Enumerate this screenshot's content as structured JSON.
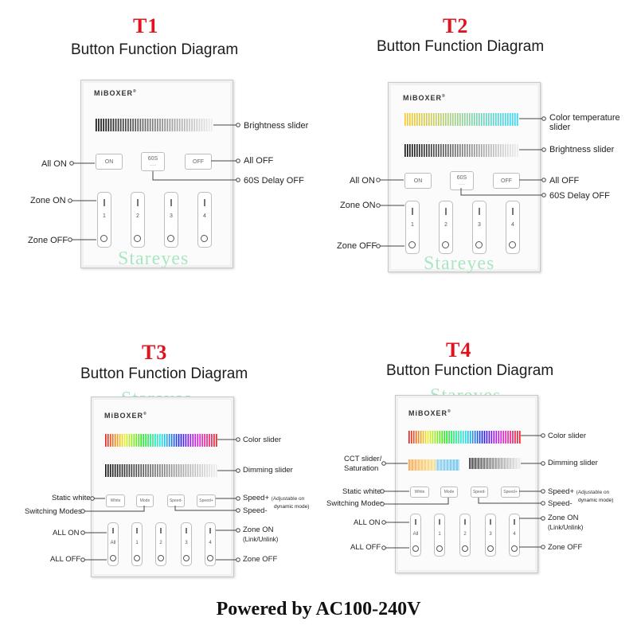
{
  "brand": "MiBOXER",
  "watermark": "Stareyes",
  "footer": "Powered by AC100-240V",
  "colors": {
    "tag": "#e0141e",
    "watermark": "#8fe0b0"
  },
  "t1": {
    "tag": "T1",
    "title": "Button Function Diagram",
    "buttons": [
      "ON",
      "60S",
      "OFF"
    ],
    "zones": [
      "1",
      "2",
      "3",
      "4"
    ],
    "labels": {
      "brightness": "Brightness slider",
      "all_on": "All ON",
      "all_off": "All OFF",
      "delay": "60S Delay OFF",
      "zone_on": "Zone ON",
      "zone_off": "Zone OFF"
    }
  },
  "t2": {
    "tag": "T2",
    "title": "Button Function Diagram",
    "buttons": [
      "ON",
      "60S",
      "OFF"
    ],
    "zones": [
      "1",
      "2",
      "3",
      "4"
    ],
    "labels": {
      "color_temp": "Color temperature",
      "color_temp_2": "slider",
      "brightness": "Brightness slider",
      "all_on": "All ON",
      "all_off": "All OFF",
      "delay": "60S Delay OFF",
      "zone_on": "Zone ON",
      "zone_off": "Zone OFF"
    }
  },
  "t3": {
    "tag": "T3",
    "title": "Button Function Diagram",
    "buttons": [
      "White",
      "Mode",
      "Speed-",
      "Speed+"
    ],
    "zones": [
      "All",
      "1",
      "2",
      "3",
      "4"
    ],
    "labels": {
      "color": "Color slider",
      "dimming": "Dimming slider",
      "static_white": "Static white",
      "switching": "Switching Modes",
      "speed_plus": "Speed+",
      "speed_note": "(Adjustable on",
      "speed_note_2": "dynamic mode)",
      "speed_minus": "Speed-",
      "all_on": "ALL ON",
      "all_off": "ALL OFF",
      "zone_on": "Zone ON",
      "zone_on_sub": "(Link/Unlink)",
      "zone_off": "Zone OFF"
    }
  },
  "t4": {
    "tag": "T4",
    "title": "Button Function Diagram",
    "buttons": [
      "White",
      "Mode",
      "Speed-",
      "Speed+"
    ],
    "zones": [
      "All",
      "1",
      "2",
      "3",
      "4"
    ],
    "labels": {
      "color": "Color slider",
      "cct": "CCT slider/",
      "saturation": "Saturation",
      "dimming": "Dimming slider",
      "static_white": "Static white",
      "switching": "Switching Modes",
      "speed_plus": "Speed+",
      "speed_note": "(Adjustable on",
      "speed_note_2": "dynamic mode)",
      "speed_minus": "Speed-",
      "all_on": "ALL ON",
      "all_off": "ALL OFF",
      "zone_on": "Zone ON",
      "zone_on_sub": "(Link/Unlink)",
      "zone_off": "Zone OFF"
    }
  }
}
